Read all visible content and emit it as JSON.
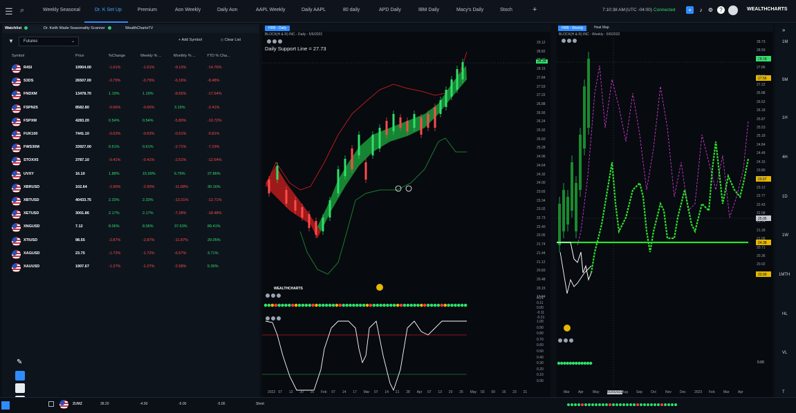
{
  "topbar": {
    "tabs": [
      "Weekly Seasonal",
      "Dr. K Set Up",
      "Premium",
      "Aon Weekly",
      "Daily Aon",
      "AAPL Weekly",
      "Daily AAPL",
      "80 daily",
      "APD Daily",
      "IBM Daily",
      "Macy's Daily",
      "Stoch"
    ],
    "active_tab": "Dr. K Set Up",
    "add_tab": "+",
    "time": "7:10:38 AM",
    "tz": "(UTC -04:00)",
    "status": "Connected",
    "brand": "WEALTHCHARTS"
  },
  "watchlist": {
    "panel_tabs": [
      "Watchlist",
      "Dr. Keith Wade Seasonality Scanner",
      "WealthChartsTV"
    ],
    "filter_value": "Futures",
    "add_symbol": "Add Symbol",
    "clear_list": "Clear List",
    "columns": [
      "Symbol",
      "Price",
      "%Change",
      "Weekly % ...",
      "Monthly % ...",
      "YTD % Cha..."
    ],
    "rows": [
      [
        "R4SI",
        "19904.00",
        "-1.61%",
        "-1.61%",
        "-9.13%",
        "-14.76%"
      ],
      [
        "S3DS",
        "26507.00",
        "-0.79%",
        "-0.79%",
        "-6.16%",
        "-8.48%"
      ],
      [
        "FNDXM",
        "13478.70",
        "1.19%",
        "1.19%",
        "-8.65%",
        "-17.54%"
      ],
      [
        "FSPN25",
        "8582.80",
        "-0.66%",
        "-0.66%",
        "3.15%",
        "-2.41%"
      ],
      [
        "FSPXM",
        "4283.20",
        "0.54%",
        "0.54%",
        "-5.80%",
        "-10.72%"
      ],
      [
        "FUK100",
        "7441.10",
        "-0.63%",
        "-0.63%",
        "-0.51%",
        "-0.81%"
      ],
      [
        "FWS30M",
        "33927.00",
        "0.61%",
        "0.61%",
        "-2.71%",
        "-7.23%"
      ],
      [
        "STOXX5",
        "3787.10",
        "-0.41%",
        "-0.41%",
        "-2.51%",
        "-12.54%"
      ],
      [
        "UVXY",
        "16.10",
        "1.88%",
        "15.09%",
        "6.79%",
        "27.86%"
      ],
      [
        "XBRUSD",
        "102.64",
        "-2.90%",
        "-2.90%",
        "-11.68%",
        "30.16%"
      ],
      [
        "XBTUSD",
        "40433.75",
        "2.33%",
        "2.33%",
        "-13.31%",
        "-12.71%"
      ],
      [
        "XETUSD",
        "3001.86",
        "2.17%",
        "2.17%",
        "-7.28%",
        "-18.48%"
      ],
      [
        "XNGUSD",
        "7.12",
        "8.06%",
        "8.06%",
        "37.63%",
        "89.41%"
      ],
      [
        "XTIUSD",
        "98.55",
        "-2.87%",
        "-2.87%",
        "-11.87%",
        "29.05%"
      ],
      [
        "XAGUSD",
        "23.75",
        "-1.72%",
        "-1.72%",
        "-6.57%",
        "3.71%"
      ],
      [
        "XAUUSD",
        "1907.67",
        "-1.27%",
        "-1.27%",
        "-2.58%",
        "5.30%"
      ]
    ],
    "bottom_row": [
      "ZUMZ",
      "38.20",
      "-4.50",
      "-5.00",
      "-5.00",
      "Short"
    ]
  },
  "chart1": {
    "tab": "HRB - Daily",
    "sub": "BLOCK(H & R) INC - Daily - 5/6/2022",
    "annotation": "Daily Support Line = 27.73",
    "price_axis": [
      "29.12",
      "28.82",
      "28.39",
      "28.15",
      "27.84",
      "27.53",
      "27.22",
      "26.88",
      "26.56",
      "26.24",
      "25.92",
      "25.60",
      "25.28",
      "24.96",
      "24.64",
      "24.32",
      "24.00",
      "23.65",
      "23.34",
      "23.02",
      "22.73",
      "22.40",
      "22.05",
      "21.74",
      "21.44",
      "21.12",
      "20.83",
      "20.48",
      "20.15",
      "19.84"
    ],
    "current_price": "28.39",
    "osc_axis": [
      "0.21",
      "0.11",
      "0.00",
      "-0.11",
      "-0.21"
    ],
    "stoch_axis": [
      "1.00",
      "0.90",
      "0.80",
      "0.70",
      "0.60",
      "0.50",
      "0.40",
      "0.30",
      "0.20",
      "0.10",
      "0.00"
    ],
    "date_axis": [
      "2022",
      "07",
      "13",
      "20",
      "25",
      "Feb",
      "07",
      "14",
      "17",
      "Mar",
      "07",
      "14",
      "21",
      "28",
      "Apr",
      "07",
      "13",
      "20",
      "25",
      "May",
      "03",
      "09",
      "16",
      "23",
      "21"
    ],
    "logo": "WEALTHCHARTS"
  },
  "chart2": {
    "tab": "HRB - Weekly",
    "tab2": "Heat Map",
    "sub": "BLOCK(H & R) INC - Weekly - 5/6/2022",
    "price_axis": [
      "28.73",
      "28.59",
      "28.22",
      "27.86",
      "27.56",
      "27.22",
      "26.88",
      "26.52",
      "26.18",
      "25.87",
      "25.53",
      "25.18",
      "24.84",
      "24.49",
      "24.15",
      "23.80",
      "23.46",
      "23.12",
      "22.77",
      "22.43",
      "22.08",
      "21.74",
      "21.39",
      "21.05",
      "20.71",
      "20.36",
      "20.02"
    ],
    "tags": [
      "28.39",
      "27.56",
      "24.38",
      "25.87",
      "25.05",
      "23.99"
    ],
    "osc_value": "0.00",
    "date_axis": [
      "Mar",
      "Apr",
      "May",
      "6/20/2022",
      "Aug",
      "Sep",
      "Oct",
      "Nov",
      "Dec",
      "2023",
      "Feb",
      "Mar",
      "Apr"
    ]
  },
  "rightnav": {
    "labels": [
      "1M",
      "5M",
      "1H",
      "4H",
      "1D",
      "1W",
      "1MTH",
      "HL",
      "VL",
      "T"
    ]
  },
  "colors": {
    "accent": "#2f8cff",
    "up": "#2ee06a",
    "down": "#ff4b4b"
  }
}
